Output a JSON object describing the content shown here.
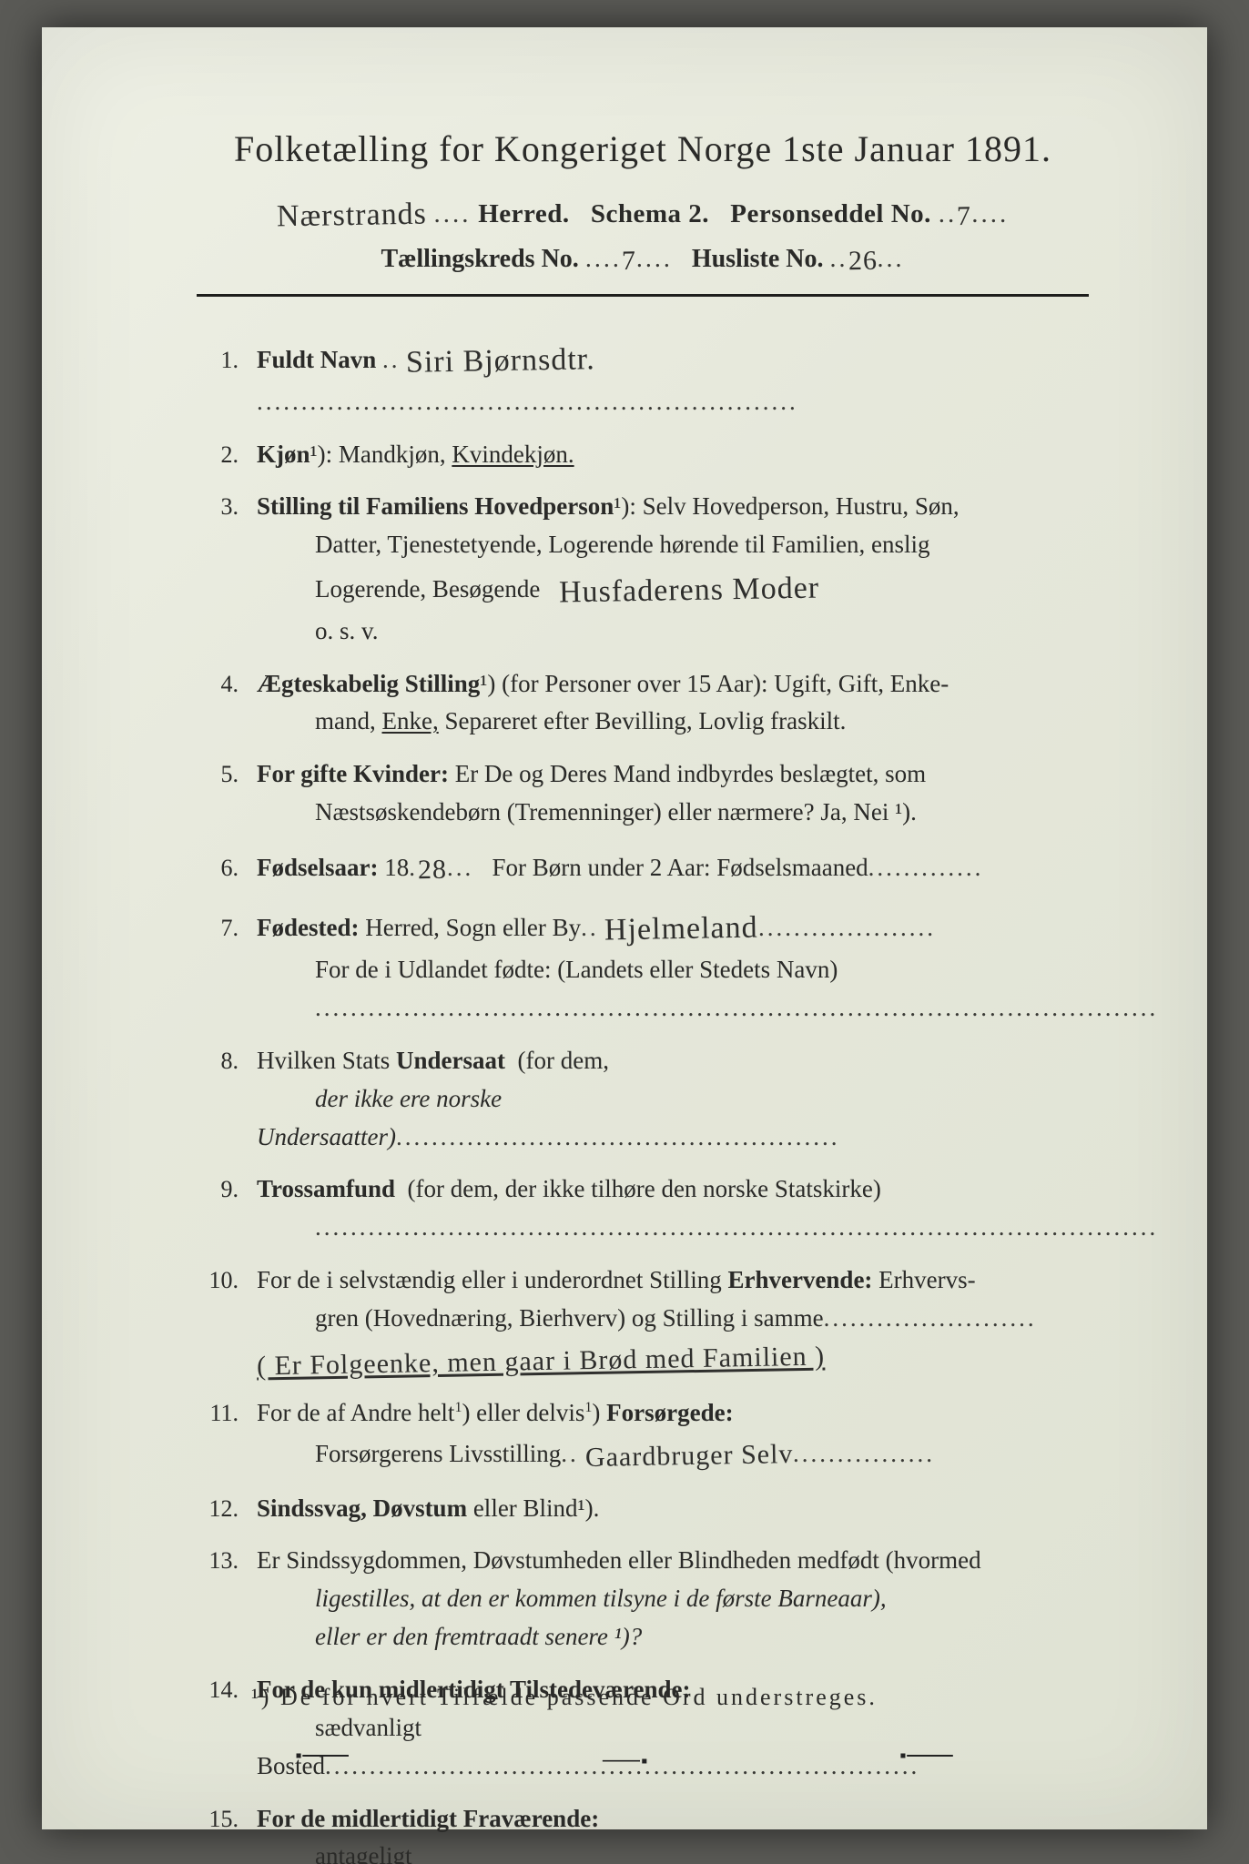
{
  "colors": {
    "paper_bg_start": "#eef0e5",
    "paper_bg_end": "#dfe2d3",
    "outer_bg": "#5a5a56",
    "ink": "#2a2a28",
    "rule": "#1e1e1c"
  },
  "typography": {
    "title_fontsize_pt": 30,
    "body_fontsize_pt": 20,
    "hand_fontsize_pt": 26,
    "font_family_print": "Georgia serif",
    "font_family_hand": "cursive script"
  },
  "title": "Folketælling for Kongeriget Norge 1ste Januar 1891.",
  "header": {
    "herred_hand": "Nærstrands",
    "herred_label": "Herred.",
    "schema_label": "Schema 2.",
    "personseddel_label": "Personseddel No.",
    "personseddel_no": "7",
    "kreds_label": "Tællingskreds No.",
    "kreds_no": "7",
    "husliste_label": "Husliste No.",
    "husliste_no": "26"
  },
  "items": {
    "1": {
      "label": "Fuldt Navn",
      "hand": "Siri Bjørnsdtr."
    },
    "2": {
      "label": "Kjøn",
      "note": "¹):",
      "opts": "Mandkjøn,",
      "selected": "Kvindekjøn."
    },
    "3": {
      "label": "Stilling til Familiens Hovedperson",
      "note": "¹):",
      "line1": "Selv Hovedperson, Hustru, Søn,",
      "line2": "Datter, Tjenestetyende, Logerende hørende til Familien, enslig",
      "line3_a": "Logerende, Besøgende",
      "hand": "Husfaderens Moder",
      "line4": "o. s. v."
    },
    "4": {
      "label": "Ægteskabelig Stilling",
      "note": "¹)",
      "line1": "(for Personer over 15 Aar): Ugift, Gift, Enke-",
      "line2_a": "mand,",
      "selected": "Enke,",
      "line2_b": "Separeret efter Bevilling, Lovlig fraskilt."
    },
    "5": {
      "label": "For gifte Kvinder:",
      "line1": "Er De og Deres Mand indbyrdes beslægtet, som",
      "line2": "Næstsøskendebørn (Tremenninger) eller nærmere?  Ja, Nei ¹)."
    },
    "6": {
      "label": "Fødselsaar:",
      "prefix": "18",
      "hand": "28",
      "tail": "For Børn under 2 Aar: Fødselsmaaned"
    },
    "7": {
      "label": "Fødested:",
      "line1_a": "Herred, Sogn eller By",
      "hand": "Hjelmeland",
      "line2": "For de i Udlandet fødte: (Landets eller Stedets Navn)"
    },
    "8": {
      "label": "Hvilken Stats Undersaat",
      "tail": "(for dem,",
      "line2": "der ikke ere norske Undersaatter)"
    },
    "9": {
      "label": "Trossamfund",
      "tail": "(for dem, der ikke tilhøre den norske Statskirke)"
    },
    "10": {
      "label": "For de i selvstændig eller i underordnet Stilling Erhvervende:",
      "tail": "Erhvervs-",
      "line2": "gren (Hovednæring, Bierhverv) og Stilling i samme",
      "hand": "( Er Folgeenke, men gaar i Brød med Familien )"
    },
    "11": {
      "label": "For de af Andre helt¹) eller delvis¹) Forsørgede:",
      "line2_a": "Forsørgerens Livsstilling",
      "hand": "Gaardbruger   Selv"
    },
    "12": {
      "label": "Sindssvag, Døvstum",
      "tail": "eller Blind¹)."
    },
    "13": {
      "line1": "Er Sindssygdommen, Døvstumheden eller Blindheden medfødt (hvormed",
      "line2": "ligestilles, at den er kommen tilsyne i de første Barneaar),",
      "line3": "eller er den fremtraadt senere ¹)?"
    },
    "14": {
      "label": "For de kun midlertidigt Tilstedeværende:",
      "line2": "sædvanligt Bosted"
    },
    "15": {
      "label": "For de midlertidigt Fraværende:",
      "line2": "antageligt Opholdssted"
    }
  },
  "footnote": "¹) De for hvert Tilfælde passende Ord understreges."
}
